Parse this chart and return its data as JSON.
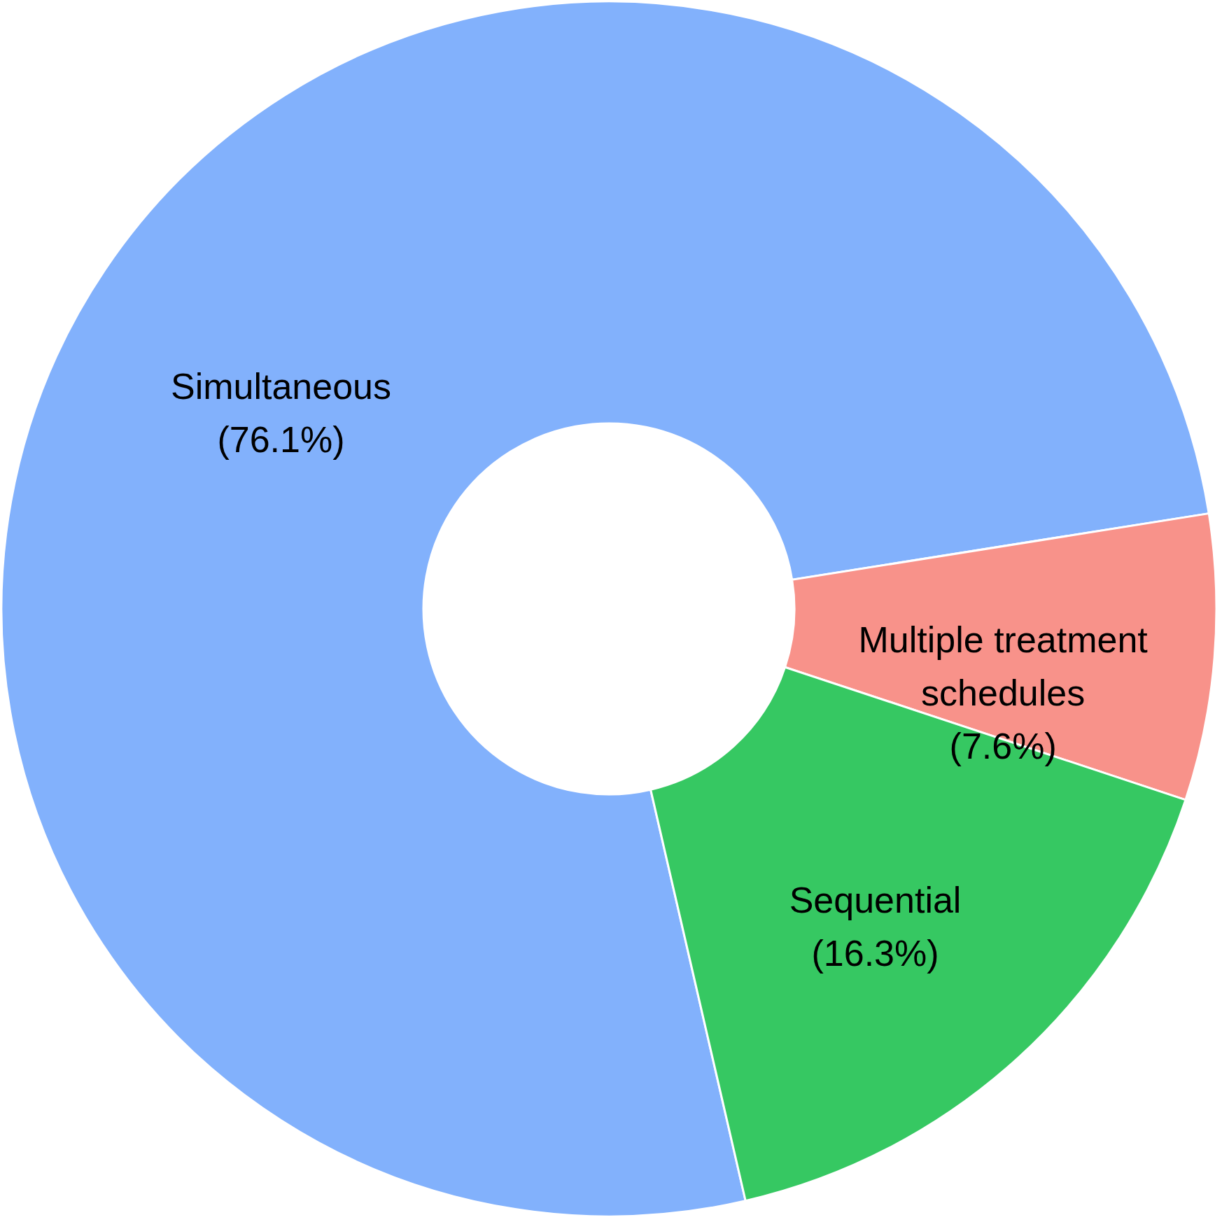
{
  "chart_data": {
    "type": "donut",
    "categories": [
      "Simultaneous",
      "Multiple treatment schedules",
      "Sequential"
    ],
    "values": [
      76.1,
      7.6,
      16.3
    ],
    "colors": [
      "#82b1fc",
      "#f8928a",
      "#36c862"
    ],
    "value_labels": [
      "(76.1%)",
      "(7.6%)",
      "(16.3%)"
    ]
  }
}
